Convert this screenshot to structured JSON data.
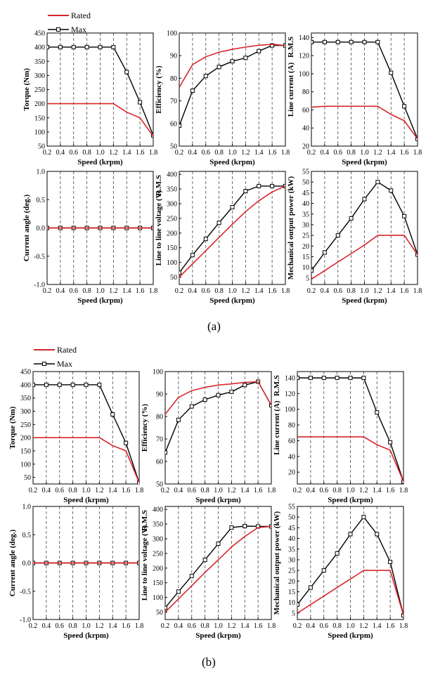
{
  "figure_labels": [
    "(a)",
    "(b)"
  ],
  "legend": {
    "rated": "Rated",
    "max": "Max"
  },
  "colors": {
    "rated": "#d8262a",
    "max": "#000000",
    "max_fade": "#777777"
  },
  "chart_data": [
    {
      "panel": "a-torque",
      "type": "line",
      "xlabel": "Speed (krpm)",
      "ylabel": "Torque (Nm)",
      "xlim": [
        0.2,
        1.8
      ],
      "ylim": [
        50,
        450
      ],
      "xticks": [
        0.2,
        0.4,
        0.6,
        0.8,
        1.0,
        1.2,
        1.4,
        1.6,
        1.8
      ],
      "yticks": [
        50,
        100,
        150,
        200,
        250,
        300,
        350,
        400,
        450
      ],
      "series": [
        {
          "name": "Rated",
          "x": [
            0.2,
            0.4,
            0.6,
            0.8,
            1.0,
            1.2,
            1.4,
            1.6,
            1.8
          ],
          "y": [
            200,
            200,
            200,
            200,
            200,
            200,
            170,
            150,
            85
          ]
        },
        {
          "name": "Max",
          "x": [
            0.2,
            0.4,
            0.6,
            0.8,
            1.0,
            1.2,
            1.4,
            1.6,
            1.8
          ],
          "y": [
            400,
            400,
            400,
            400,
            400,
            400,
            312,
            205,
            88
          ]
        }
      ]
    },
    {
      "panel": "a-efficiency",
      "type": "line",
      "xlabel": "Speed (krpm)",
      "ylabel": "Efficiency (%)",
      "xlim": [
        0.2,
        1.8
      ],
      "ylim": [
        50,
        100
      ],
      "xticks": [
        0.2,
        0.4,
        0.6,
        0.8,
        1.0,
        1.2,
        1.4,
        1.6,
        1.8
      ],
      "yticks": [
        50,
        60,
        70,
        80,
        90,
        100
      ],
      "series": [
        {
          "name": "Rated",
          "x": [
            0.2,
            0.4,
            0.6,
            0.8,
            1.0,
            1.2,
            1.4,
            1.6,
            1.8
          ],
          "y": [
            76,
            86,
            89.5,
            91.5,
            92.8,
            93.8,
            94.6,
            95,
            94.5
          ]
        },
        {
          "name": "Max",
          "x": [
            0.2,
            0.4,
            0.6,
            0.8,
            1.0,
            1.2,
            1.4,
            1.6,
            1.8
          ],
          "y": [
            59,
            74.5,
            81,
            85,
            87.5,
            89,
            92,
            94.5,
            94.5
          ]
        }
      ]
    },
    {
      "panel": "a-current",
      "type": "line",
      "xlabel": "Speed (krpm)",
      "ylabel": "Line current (A)",
      "ylabel_extra": "R.M.S",
      "xlim": [
        0.2,
        1.8
      ],
      "ylim": [
        20,
        145
      ],
      "xticks": [
        0.2,
        0.4,
        0.6,
        0.8,
        1.0,
        1.2,
        1.4,
        1.6,
        1.8
      ],
      "yticks": [
        20,
        40,
        60,
        80,
        100,
        120,
        140
      ],
      "series": [
        {
          "name": "Rated",
          "x": [
            0.2,
            0.4,
            0.6,
            0.8,
            1.0,
            1.2,
            1.4,
            1.6,
            1.8
          ],
          "y": [
            63,
            64,
            64,
            64,
            64,
            64,
            55,
            48,
            28
          ]
        },
        {
          "name": "Max",
          "x": [
            0.2,
            0.4,
            0.6,
            0.8,
            1.0,
            1.2,
            1.4,
            1.6,
            1.8
          ],
          "y": [
            135,
            135,
            135,
            135,
            135,
            135,
            101,
            64,
            28
          ]
        }
      ]
    },
    {
      "panel": "a-angle",
      "type": "line",
      "xlabel": "Speed (krpm)",
      "ylabel": "Current angle (deg.)",
      "xlim": [
        0.2,
        1.8
      ],
      "ylim": [
        -1.0,
        1.0
      ],
      "xticks": [
        0.2,
        0.4,
        0.6,
        0.8,
        1.0,
        1.2,
        1.4,
        1.6,
        1.8
      ],
      "yticks": [
        -1.0,
        -0.5,
        0.0,
        0.5,
        1.0
      ],
      "series": [
        {
          "name": "Rated",
          "x": [
            0.2,
            0.4,
            0.6,
            0.8,
            1.0,
            1.2,
            1.4,
            1.6,
            1.8
          ],
          "y": [
            0,
            0,
            0,
            0,
            0,
            0,
            0,
            0,
            0
          ]
        },
        {
          "name": "Max",
          "x": [
            0.2,
            0.4,
            0.6,
            0.8,
            1.0,
            1.2,
            1.4,
            1.6,
            1.8
          ],
          "y": [
            0,
            0,
            0,
            0,
            0,
            0,
            0,
            0,
            0
          ]
        }
      ]
    },
    {
      "panel": "a-voltage",
      "type": "line",
      "xlabel": "Speed (krpm)",
      "ylabel": "Line to line voltage (V)",
      "ylabel_extra": "R.M.S",
      "xlim": [
        0.2,
        1.8
      ],
      "ylim": [
        25,
        410
      ],
      "xticks": [
        0.2,
        0.4,
        0.6,
        0.8,
        1.0,
        1.2,
        1.4,
        1.6,
        1.8
      ],
      "yticks": [
        50,
        100,
        150,
        200,
        250,
        300,
        350,
        400
      ],
      "series": [
        {
          "name": "Rated",
          "x": [
            0.2,
            0.4,
            0.6,
            0.8,
            1.0,
            1.2,
            1.4,
            1.6,
            1.8
          ],
          "y": [
            50,
            95,
            140,
            185,
            230,
            273,
            310,
            340,
            360
          ]
        },
        {
          "name": "Max",
          "x": [
            0.2,
            0.4,
            0.6,
            0.8,
            1.0,
            1.2,
            1.4,
            1.6,
            1.8
          ],
          "y": [
            65,
            125,
            180,
            235,
            288,
            343,
            360,
            360,
            360
          ]
        }
      ]
    },
    {
      "panel": "a-power",
      "type": "line",
      "xlabel": "Speed (krpm)",
      "ylabel": "Mechanical output power (kW)",
      "xlim": [
        0.2,
        1.8
      ],
      "ylim": [
        2,
        55
      ],
      "xticks": [
        0.2,
        0.4,
        0.6,
        0.8,
        1.0,
        1.2,
        1.4,
        1.6,
        1.8
      ],
      "yticks": [
        5,
        10,
        15,
        20,
        25,
        30,
        35,
        40,
        45,
        50,
        55
      ],
      "series": [
        {
          "name": "Rated",
          "x": [
            0.2,
            0.4,
            0.6,
            0.8,
            1.0,
            1.2,
            1.4,
            1.6,
            1.8
          ],
          "y": [
            4.5,
            8.5,
            12.5,
            16.5,
            20.5,
            25,
            25,
            25,
            16
          ]
        },
        {
          "name": "Max",
          "x": [
            0.2,
            0.4,
            0.6,
            0.8,
            1.0,
            1.2,
            1.4,
            1.6,
            1.8
          ],
          "y": [
            8.5,
            17,
            25,
            33,
            42,
            50,
            46,
            34,
            16
          ]
        }
      ]
    },
    {
      "panel": "b-torque",
      "type": "line",
      "xlabel": "Speed (krpm)",
      "ylabel": "Torque (Nm)",
      "xlim": [
        0.2,
        1.8
      ],
      "ylim": [
        25,
        450
      ],
      "xticks": [
        0.2,
        0.4,
        0.6,
        0.8,
        1.0,
        1.2,
        1.4,
        1.6,
        1.8
      ],
      "yticks": [
        50,
        100,
        150,
        200,
        250,
        300,
        350,
        400,
        450
      ],
      "series": [
        {
          "name": "Rated",
          "x": [
            0.2,
            0.4,
            0.6,
            0.8,
            1.0,
            1.2,
            1.4,
            1.6,
            1.8
          ],
          "y": [
            200,
            200,
            200,
            200,
            200,
            200,
            170,
            150,
            30
          ]
        },
        {
          "name": "Max",
          "x": [
            0.2,
            0.4,
            0.6,
            0.8,
            1.0,
            1.2,
            1.4,
            1.6,
            1.8
          ],
          "y": [
            400,
            400,
            400,
            400,
            400,
            400,
            288,
            180,
            30
          ]
        }
      ]
    },
    {
      "panel": "b-efficiency",
      "type": "line",
      "xlabel": "Speed (krpm)",
      "ylabel": "Efficiency (%)",
      "xlim": [
        0.2,
        1.8
      ],
      "ylim": [
        50,
        100
      ],
      "xticks": [
        0.2,
        0.4,
        0.6,
        0.8,
        1.0,
        1.2,
        1.4,
        1.6,
        1.8
      ],
      "yticks": [
        50,
        60,
        70,
        80,
        90,
        100
      ],
      "series": [
        {
          "name": "Rated",
          "x": [
            0.2,
            0.4,
            0.6,
            0.8,
            1.0,
            1.2,
            1.4,
            1.6,
            1.8
          ],
          "y": [
            81,
            88.5,
            91.5,
            93,
            94,
            94.5,
            95.2,
            95.5,
            85
          ]
        },
        {
          "name": "Max",
          "x": [
            0.2,
            0.4,
            0.6,
            0.8,
            1.0,
            1.2,
            1.4,
            1.6,
            1.8
          ],
          "y": [
            64,
            78.5,
            84.5,
            87.5,
            89.5,
            91,
            94,
            95.5,
            85
          ]
        }
      ]
    },
    {
      "panel": "b-current",
      "type": "line",
      "xlabel": "Speed (krpm)",
      "ylabel": "Line current (A)",
      "ylabel_extra": "R.M.S",
      "xlim": [
        0.2,
        1.8
      ],
      "ylim": [
        5,
        148
      ],
      "xticks": [
        0.2,
        0.4,
        0.6,
        0.8,
        1.0,
        1.2,
        1.4,
        1.6,
        1.8
      ],
      "yticks": [
        20,
        40,
        60,
        80,
        100,
        120,
        140
      ],
      "series": [
        {
          "name": "Rated",
          "x": [
            0.2,
            0.4,
            0.6,
            0.8,
            1.0,
            1.2,
            1.4,
            1.6,
            1.8
          ],
          "y": [
            65,
            65,
            65,
            65,
            65,
            65,
            55,
            48,
            8
          ]
        },
        {
          "name": "Max",
          "x": [
            0.2,
            0.4,
            0.6,
            0.8,
            1.0,
            1.2,
            1.4,
            1.6,
            1.8
          ],
          "y": [
            140,
            140,
            140,
            140,
            140,
            140,
            96,
            58,
            8
          ]
        }
      ]
    },
    {
      "panel": "b-angle",
      "type": "line",
      "xlabel": "Speed (krpm)",
      "ylabel": "Current angle (deg.)",
      "xlim": [
        0.2,
        1.8
      ],
      "ylim": [
        -1.0,
        1.0
      ],
      "xticks": [
        0.2,
        0.4,
        0.6,
        0.8,
        1.0,
        1.2,
        1.4,
        1.6,
        1.8
      ],
      "yticks": [
        -1.0,
        -0.5,
        0.0,
        0.5,
        1.0
      ],
      "series": [
        {
          "name": "Rated",
          "x": [
            0.2,
            0.4,
            0.6,
            0.8,
            1.0,
            1.2,
            1.4,
            1.6,
            1.8
          ],
          "y": [
            0,
            0,
            0,
            0,
            0,
            0,
            0,
            0,
            0
          ]
        },
        {
          "name": "Max",
          "x": [
            0.2,
            0.4,
            0.6,
            0.8,
            1.0,
            1.2,
            1.4,
            1.6,
            1.8
          ],
          "y": [
            0,
            0,
            0,
            0,
            0,
            0,
            0,
            0,
            0
          ]
        }
      ]
    },
    {
      "panel": "b-voltage",
      "type": "line",
      "xlabel": "Speed (krpm)",
      "ylabel": "Line to line voltage (V)",
      "ylabel_extra": "R.M.S",
      "xlim": [
        0.2,
        1.8
      ],
      "ylim": [
        25,
        410
      ],
      "xticks": [
        0.2,
        0.4,
        0.6,
        0.8,
        1.0,
        1.2,
        1.4,
        1.6,
        1.8
      ],
      "yticks": [
        50,
        100,
        150,
        200,
        250,
        300,
        350,
        400
      ],
      "series": [
        {
          "name": "Rated",
          "x": [
            0.2,
            0.4,
            0.6,
            0.8,
            1.0,
            1.2,
            1.4,
            1.6,
            1.8
          ],
          "y": [
            50,
            95,
            140,
            185,
            228,
            272,
            308,
            338,
            342
          ]
        },
        {
          "name": "Max",
          "x": [
            0.2,
            0.4,
            0.6,
            0.8,
            1.0,
            1.2,
            1.4,
            1.6,
            1.8
          ],
          "y": [
            65,
            120,
            173,
            228,
            283,
            338,
            343,
            342,
            342
          ]
        }
      ]
    },
    {
      "panel": "b-power",
      "type": "line",
      "xlabel": "Speed (krpm)",
      "ylabel": "Mechanical output power (kW)",
      "xlim": [
        0.2,
        1.8
      ],
      "ylim": [
        2,
        55
      ],
      "xticks": [
        0.2,
        0.4,
        0.6,
        0.8,
        1.0,
        1.2,
        1.4,
        1.6,
        1.8
      ],
      "yticks": [
        5,
        10,
        15,
        20,
        25,
        30,
        35,
        40,
        45,
        50,
        55
      ],
      "series": [
        {
          "name": "Rated",
          "x": [
            0.2,
            0.4,
            0.6,
            0.8,
            1.0,
            1.2,
            1.4,
            1.6,
            1.8
          ],
          "y": [
            5,
            9,
            13,
            17,
            21,
            25,
            25,
            25,
            4
          ]
        },
        {
          "name": "Max",
          "x": [
            0.2,
            0.4,
            0.6,
            0.8,
            1.0,
            1.2,
            1.4,
            1.6,
            1.8
          ],
          "y": [
            9,
            17,
            25,
            33,
            42,
            50,
            42,
            29,
            4
          ]
        }
      ]
    }
  ]
}
